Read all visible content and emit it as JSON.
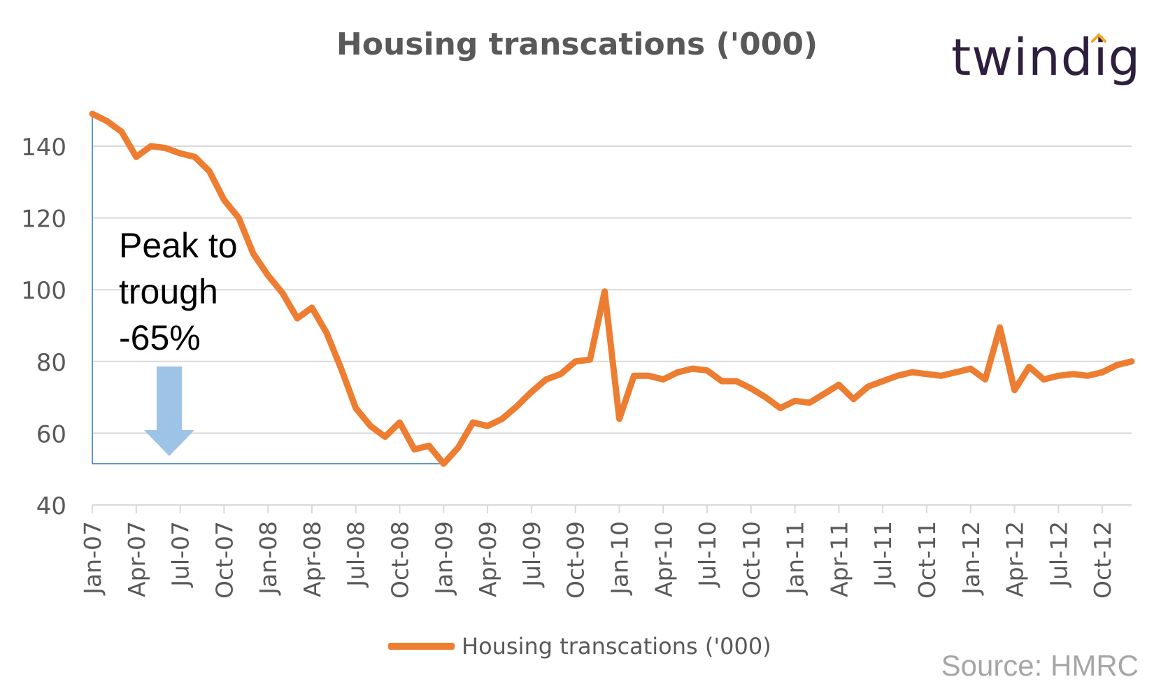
{
  "brand": {
    "name": "twindig",
    "accent_color": "#F5A623",
    "color": "#2D1F3D"
  },
  "annotation": {
    "text": "Peak to\ntrough\n-65%"
  },
  "source": "Source: HMRC",
  "chart_data": {
    "type": "line",
    "title": "Housing transcations ('000)",
    "xlabel": "",
    "ylabel": "",
    "ylim": [
      40,
      150
    ],
    "yticks": [
      40,
      60,
      80,
      100,
      120,
      140
    ],
    "grid": true,
    "legend_position": "bottom",
    "line_color": "#ED7D31",
    "x": [
      "Jan-07",
      "Feb-07",
      "Mar-07",
      "Apr-07",
      "May-07",
      "Jun-07",
      "Jul-07",
      "Aug-07",
      "Sep-07",
      "Oct-07",
      "Nov-07",
      "Dec-07",
      "Jan-08",
      "Feb-08",
      "Mar-08",
      "Apr-08",
      "May-08",
      "Jun-08",
      "Jul-08",
      "Aug-08",
      "Sep-08",
      "Oct-08",
      "Nov-08",
      "Dec-08",
      "Jan-09",
      "Feb-09",
      "Mar-09",
      "Apr-09",
      "May-09",
      "Jun-09",
      "Jul-09",
      "Aug-09",
      "Sep-09",
      "Oct-09",
      "Nov-09",
      "Dec-09",
      "Jan-10",
      "Feb-10",
      "Mar-10",
      "Apr-10",
      "May-10",
      "Jun-10",
      "Jul-10",
      "Aug-10",
      "Sep-10",
      "Oct-10",
      "Nov-10",
      "Dec-10",
      "Jan-11",
      "Feb-11",
      "Mar-11",
      "Apr-11",
      "May-11",
      "Jun-11",
      "Jul-11",
      "Aug-11",
      "Sep-11",
      "Oct-11",
      "Nov-11",
      "Dec-11",
      "Jan-12",
      "Feb-12",
      "Mar-12",
      "Apr-12",
      "May-12",
      "Jun-12",
      "Jul-12",
      "Aug-12",
      "Sep-12",
      "Oct-12",
      "Nov-12",
      "Dec-12"
    ],
    "x_tick_labels": [
      "Jan-07",
      "Apr-07",
      "Jul-07",
      "Oct-07",
      "Jan-08",
      "Apr-08",
      "Jul-08",
      "Oct-08",
      "Jan-09",
      "Apr-09",
      "Jul-09",
      "Oct-09",
      "Jan-10",
      "Apr-10",
      "Jul-10",
      "Oct-10",
      "Jan-11",
      "Apr-11",
      "Jul-11",
      "Oct-11",
      "Jan-12",
      "Apr-12",
      "Jul-12",
      "Oct-12"
    ],
    "series": [
      {
        "name": "Housing transcations ('000)",
        "values": [
          149,
          147,
          144,
          137,
          140,
          139.5,
          138,
          137,
          133,
          125,
          120,
          110,
          104,
          99,
          92,
          95,
          88,
          78,
          67,
          62,
          59,
          63,
          55.5,
          56.5,
          51.5,
          56,
          63,
          62,
          64,
          67.5,
          71.5,
          75,
          76.5,
          80,
          80.5,
          99.5,
          64,
          76,
          76,
          75,
          77,
          78,
          77.5,
          74.5,
          74.5,
          72.5,
          70,
          67,
          69,
          68.5,
          71,
          73.5,
          69.5,
          73,
          74.5,
          76,
          77,
          76.5,
          76,
          77,
          78,
          75,
          89.5,
          72,
          78.5,
          75,
          76,
          76.5,
          76,
          77,
          79,
          80
        ]
      }
    ],
    "annotations": [
      {
        "type": "peak-trough-bracket",
        "from": "Jan-07",
        "to": "Jan-09",
        "from_value": 149,
        "to_value": 51.5
      },
      {
        "type": "down-arrow",
        "color": "#9DC3E6"
      }
    ]
  }
}
